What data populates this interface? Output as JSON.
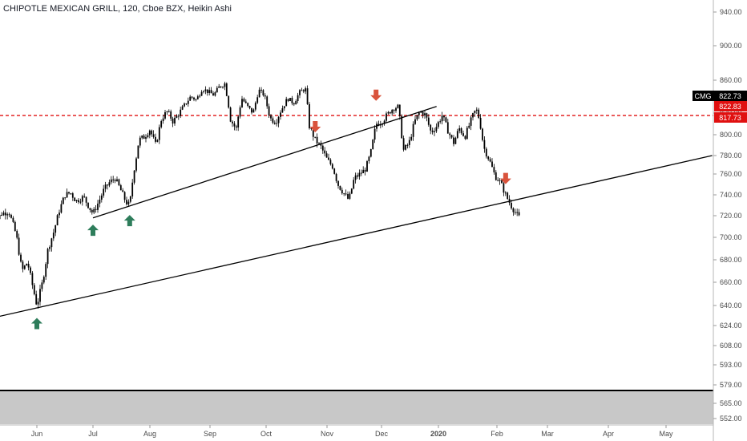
{
  "header": {
    "title": "CHIPOTLE MEXICAN GRILL, 120, Cboe BZX, Heikin Ashi"
  },
  "colors": {
    "candle": "#000000",
    "resistance": "#e01010",
    "trendline": "#000000",
    "up_arrow": "#2e7d5b",
    "down_arrow": "#d9533c",
    "ticker_badge": "#000000",
    "price_badge": "#e01010",
    "volume_pane": "#c8c8c8"
  },
  "chart_data": {
    "type": "candlestick",
    "symbol_badge": "CMG",
    "last_price": "822.73",
    "badges": {
      "last": "822.73",
      "high": "822.83",
      "resistance": "817.73"
    },
    "resistance_level": 817.73,
    "y_ticks": [
      "940.00",
      "900.00",
      "860.00",
      "820.00",
      "800.00",
      "780.00",
      "760.00",
      "740.00",
      "720.00",
      "700.00",
      "680.00",
      "660.00",
      "640.00",
      "624.00",
      "608.00",
      "593.00",
      "579.00",
      "565.00",
      "552.00"
    ],
    "x_ticks": [
      {
        "label": "Jun",
        "date": "2019-06-01",
        "bold": false
      },
      {
        "label": "Jul",
        "date": "2019-07-01",
        "bold": false
      },
      {
        "label": "Aug",
        "date": "2019-08-01",
        "bold": false
      },
      {
        "label": "Sep",
        "date": "2019-09-01",
        "bold": false
      },
      {
        "label": "Oct",
        "date": "2019-10-01",
        "bold": false
      },
      {
        "label": "Nov",
        "date": "2019-11-01",
        "bold": false
      },
      {
        "label": "Dec",
        "date": "2019-12-01",
        "bold": false
      },
      {
        "label": "2020",
        "date": "2020-01-01",
        "bold": true
      },
      {
        "label": "Feb",
        "date": "2020-02-01",
        "bold": false
      },
      {
        "label": "Mar",
        "date": "2020-03-01",
        "bold": false
      },
      {
        "label": "Apr",
        "date": "2020-04-01",
        "bold": false
      },
      {
        "label": "May",
        "date": "2020-05-01",
        "bold": false
      }
    ],
    "price_path": [
      [
        "2019-05-08",
        710
      ],
      [
        "2019-05-13",
        722
      ],
      [
        "2019-05-17",
        724
      ],
      [
        "2019-05-21",
        702
      ],
      [
        "2019-05-24",
        670
      ],
      [
        "2019-05-27",
        678
      ],
      [
        "2019-05-29",
        662
      ],
      [
        "2019-06-01",
        640
      ],
      [
        "2019-06-04",
        660
      ],
      [
        "2019-06-07",
        690
      ],
      [
        "2019-06-10",
        705
      ],
      [
        "2019-06-13",
        725
      ],
      [
        "2019-06-16",
        740
      ],
      [
        "2019-06-19",
        742
      ],
      [
        "2019-06-22",
        734
      ],
      [
        "2019-06-26",
        738
      ],
      [
        "2019-06-29",
        728
      ],
      [
        "2019-07-01",
        722
      ],
      [
        "2019-07-04",
        733
      ],
      [
        "2019-07-07",
        745
      ],
      [
        "2019-07-10",
        752
      ],
      [
        "2019-07-13",
        756
      ],
      [
        "2019-07-16",
        745
      ],
      [
        "2019-07-19",
        733
      ],
      [
        "2019-07-21",
        730
      ],
      [
        "2019-07-23",
        760
      ],
      [
        "2019-07-26",
        795
      ],
      [
        "2019-07-29",
        798
      ],
      [
        "2019-08-01",
        805
      ],
      [
        "2019-08-04",
        790
      ],
      [
        "2019-08-07",
        815
      ],
      [
        "2019-08-10",
        822
      ],
      [
        "2019-08-13",
        812
      ],
      [
        "2019-08-16",
        820
      ],
      [
        "2019-08-19",
        830
      ],
      [
        "2019-08-22",
        840
      ],
      [
        "2019-08-25",
        836
      ],
      [
        "2019-08-28",
        850
      ],
      [
        "2019-08-31",
        846
      ],
      [
        "2019-09-03",
        842
      ],
      [
        "2019-09-06",
        852
      ],
      [
        "2019-09-09",
        856
      ],
      [
        "2019-09-12",
        814
      ],
      [
        "2019-09-15",
        805
      ],
      [
        "2019-09-18",
        838
      ],
      [
        "2019-09-21",
        828
      ],
      [
        "2019-09-24",
        820
      ],
      [
        "2019-09-27",
        848
      ],
      [
        "2019-09-30",
        842
      ],
      [
        "2019-10-03",
        815
      ],
      [
        "2019-10-06",
        812
      ],
      [
        "2019-10-09",
        825
      ],
      [
        "2019-10-12",
        838
      ],
      [
        "2019-10-15",
        832
      ],
      [
        "2019-10-18",
        845
      ],
      [
        "2019-10-21",
        850
      ],
      [
        "2019-10-23",
        808
      ],
      [
        "2019-10-26",
        795
      ],
      [
        "2019-10-29",
        788
      ],
      [
        "2019-11-01",
        776
      ],
      [
        "2019-11-04",
        768
      ],
      [
        "2019-11-07",
        750
      ],
      [
        "2019-11-10",
        742
      ],
      [
        "2019-11-13",
        735
      ],
      [
        "2019-11-16",
        756
      ],
      [
        "2019-11-19",
        760
      ],
      [
        "2019-11-22",
        765
      ],
      [
        "2019-11-25",
        782
      ],
      [
        "2019-11-28",
        810
      ],
      [
        "2019-12-01",
        812
      ],
      [
        "2019-12-04",
        818
      ],
      [
        "2019-12-07",
        825
      ],
      [
        "2019-12-10",
        828
      ],
      [
        "2019-12-13",
        785
      ],
      [
        "2019-12-16",
        792
      ],
      [
        "2019-12-19",
        812
      ],
      [
        "2019-12-22",
        822
      ],
      [
        "2019-12-25",
        818
      ],
      [
        "2019-12-28",
        802
      ],
      [
        "2019-12-31",
        808
      ],
      [
        "2020-01-03",
        818
      ],
      [
        "2020-01-06",
        804
      ],
      [
        "2020-01-09",
        792
      ],
      [
        "2020-01-12",
        806
      ],
      [
        "2020-01-15",
        798
      ],
      [
        "2020-01-18",
        812
      ],
      [
        "2020-01-21",
        825
      ],
      [
        "2020-01-23",
        812
      ],
      [
        "2020-01-25",
        788
      ],
      [
        "2020-01-28",
        775
      ],
      [
        "2020-01-31",
        758
      ],
      [
        "2020-02-03",
        752
      ],
      [
        "2020-02-06",
        740
      ],
      [
        "2020-02-09",
        730
      ],
      [
        "2020-02-12",
        722
      ],
      [
        "2020-02-14",
        718
      ]
    ],
    "trendlines": [
      {
        "from": [
          "2019-05-08",
          630
        ],
        "to": [
          "2020-05-25",
          780
        ]
      },
      {
        "from": [
          "2019-07-01",
          718
        ],
        "to": [
          "2019-12-31",
          828
        ]
      }
    ],
    "up_arrows": [
      {
        "date": "2019-06-01",
        "price": 632
      },
      {
        "date": "2019-07-01",
        "price": 714
      },
      {
        "date": "2019-07-21",
        "price": 723
      }
    ],
    "down_arrows": [
      {
        "date": "2019-10-26",
        "price": 800
      },
      {
        "date": "2019-11-28",
        "price": 832
      },
      {
        "date": "2020-02-06",
        "price": 748
      }
    ]
  }
}
